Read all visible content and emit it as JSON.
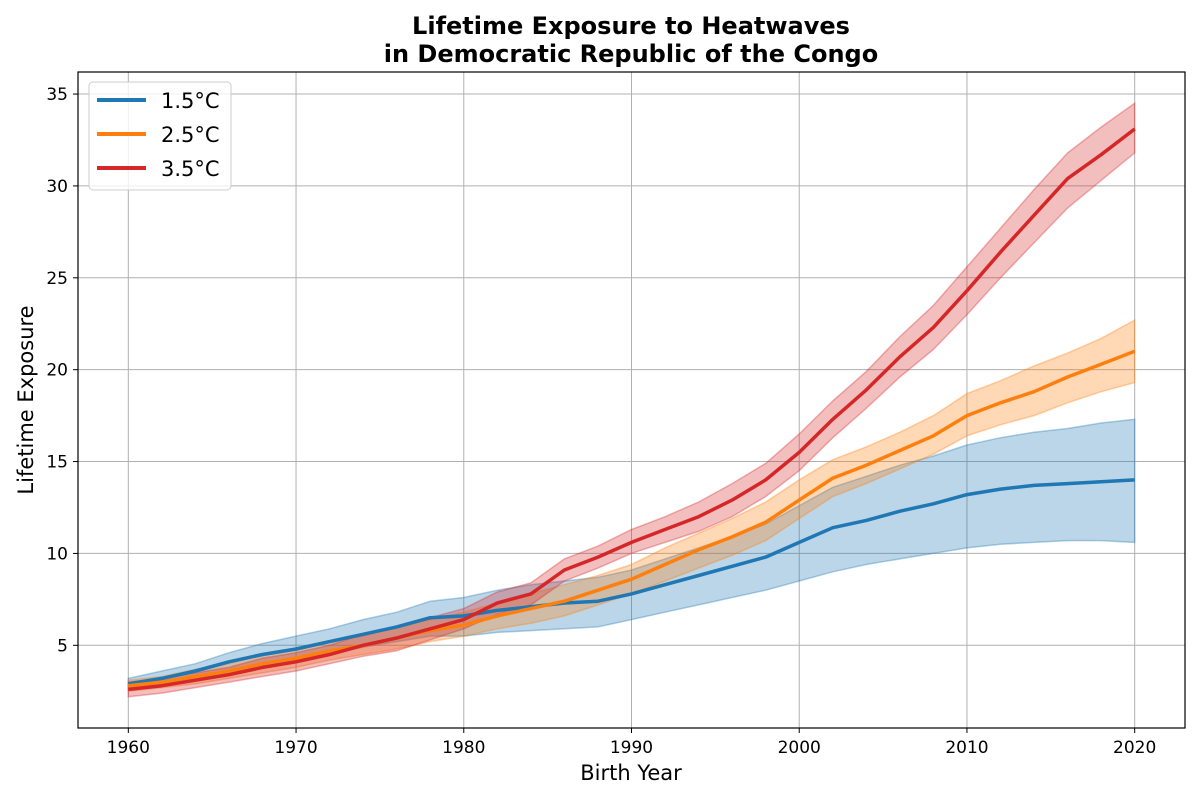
{
  "chart_data": {
    "type": "line",
    "title_line1": "Lifetime Exposure to Heatwaves",
    "title_line2": "in Democratic Republic of the Congo",
    "xlabel": "Birth Year",
    "ylabel": "Lifetime Exposure",
    "xlim": [
      1957,
      2023
    ],
    "ylim": [
      0.5,
      36.2
    ],
    "xticks": [
      1960,
      1970,
      1980,
      1990,
      2000,
      2010,
      2020
    ],
    "yticks": [
      5,
      10,
      15,
      20,
      25,
      30,
      35
    ],
    "grid": true,
    "legend_position": "top-left",
    "x": [
      1960,
      1962,
      1964,
      1966,
      1968,
      1970,
      1972,
      1974,
      1976,
      1978,
      1980,
      1982,
      1984,
      1986,
      1988,
      1990,
      1992,
      1994,
      1996,
      1998,
      2000,
      2002,
      2004,
      2006,
      2008,
      2010,
      2012,
      2014,
      2016,
      2018,
      2020
    ],
    "series": [
      {
        "name": "1.5°C",
        "color": "#1f77b4",
        "values": [
          2.9,
          3.2,
          3.6,
          4.1,
          4.5,
          4.8,
          5.2,
          5.6,
          6.0,
          6.5,
          6.6,
          6.9,
          7.1,
          7.3,
          7.4,
          7.8,
          8.3,
          8.8,
          9.3,
          9.8,
          10.6,
          11.4,
          11.8,
          12.3,
          12.7,
          13.2,
          13.5,
          13.7,
          13.8,
          13.9,
          14.0
        ],
        "lower": [
          2.6,
          2.9,
          3.2,
          3.5,
          3.8,
          4.1,
          4.5,
          4.9,
          5.2,
          5.5,
          5.5,
          5.7,
          5.8,
          5.9,
          6.0,
          6.4,
          6.8,
          7.2,
          7.6,
          8.0,
          8.5,
          9.0,
          9.4,
          9.7,
          10.0,
          10.3,
          10.5,
          10.6,
          10.7,
          10.7,
          10.6
        ],
        "upper": [
          3.2,
          3.6,
          4.0,
          4.6,
          5.1,
          5.5,
          5.9,
          6.4,
          6.8,
          7.4,
          7.6,
          8.0,
          8.3,
          8.5,
          8.7,
          9.1,
          9.7,
          10.3,
          10.9,
          11.6,
          12.6,
          13.6,
          14.2,
          14.8,
          15.3,
          15.9,
          16.3,
          16.6,
          16.8,
          17.1,
          17.3
        ]
      },
      {
        "name": "2.5°C",
        "color": "#ff7f0e",
        "values": [
          2.8,
          3.0,
          3.3,
          3.6,
          4.0,
          4.3,
          4.7,
          5.0,
          5.4,
          5.8,
          6.1,
          6.6,
          7.0,
          7.4,
          8.0,
          8.6,
          9.4,
          10.2,
          10.9,
          11.7,
          12.9,
          14.1,
          14.8,
          15.6,
          16.4,
          17.5,
          18.2,
          18.8,
          19.6,
          20.3,
          21.0
        ],
        "lower": [
          2.5,
          2.7,
          2.9,
          3.2,
          3.5,
          3.8,
          4.2,
          4.5,
          4.8,
          5.2,
          5.5,
          5.9,
          6.2,
          6.6,
          7.2,
          7.8,
          8.5,
          9.2,
          9.9,
          10.7,
          11.9,
          13.1,
          13.8,
          14.6,
          15.4,
          16.4,
          17.0,
          17.5,
          18.2,
          18.8,
          19.3
        ],
        "upper": [
          3.1,
          3.3,
          3.7,
          4.0,
          4.5,
          4.8,
          5.2,
          5.5,
          6.0,
          6.4,
          6.8,
          7.3,
          7.8,
          8.3,
          8.8,
          9.4,
          10.3,
          11.1,
          11.9,
          12.8,
          14.0,
          15.1,
          15.8,
          16.6,
          17.5,
          18.7,
          19.4,
          20.2,
          20.9,
          21.7,
          22.7
        ]
      },
      {
        "name": "3.5°C",
        "color": "#d62728",
        "values": [
          2.6,
          2.8,
          3.1,
          3.4,
          3.8,
          4.1,
          4.5,
          5.0,
          5.4,
          5.9,
          6.4,
          7.3,
          7.8,
          9.1,
          9.8,
          10.6,
          11.3,
          12.0,
          12.9,
          14.0,
          15.5,
          17.3,
          18.9,
          20.7,
          22.3,
          24.3,
          26.4,
          28.4,
          30.4,
          31.7,
          33.1
        ],
        "lower": [
          2.2,
          2.4,
          2.7,
          3.0,
          3.3,
          3.6,
          4.0,
          4.4,
          4.7,
          5.3,
          5.9,
          6.7,
          7.2,
          8.5,
          9.2,
          10.0,
          10.6,
          11.2,
          12.0,
          13.1,
          14.5,
          16.3,
          17.9,
          19.6,
          21.1,
          23.0,
          25.0,
          26.9,
          28.8,
          30.3,
          31.8
        ],
        "upper": [
          3.0,
          3.2,
          3.5,
          3.8,
          4.3,
          4.6,
          5.0,
          5.6,
          6.0,
          6.5,
          7.0,
          7.9,
          8.4,
          9.7,
          10.4,
          11.3,
          12.0,
          12.8,
          13.8,
          14.9,
          16.5,
          18.3,
          19.9,
          21.8,
          23.5,
          25.6,
          27.7,
          29.8,
          31.8,
          33.2,
          34.5
        ]
      }
    ]
  }
}
